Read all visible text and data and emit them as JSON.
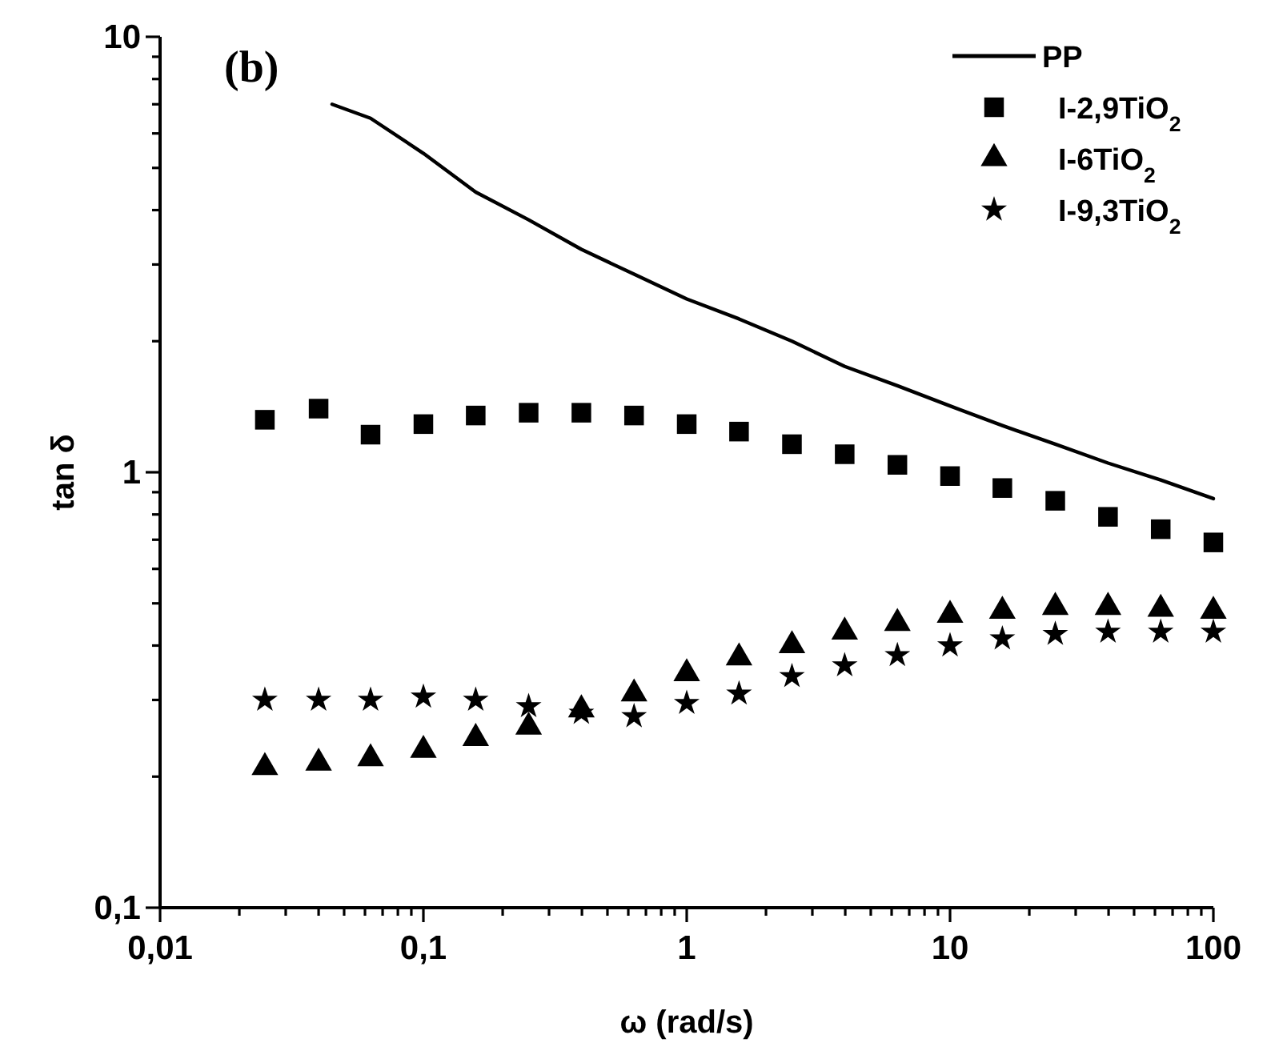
{
  "chart_data": {
    "type": "scatter",
    "title": "(b)",
    "xlabel": "ω (rad/s)",
    "ylabel": "tan δ",
    "log": "xy",
    "legend": "top right",
    "grid": false,
    "xlim": [
      0.01,
      100
    ],
    "ylim": [
      0.1,
      10
    ],
    "xticks": [
      {
        "value": 0.01,
        "label": "0,01"
      },
      {
        "value": 0.02,
        "label": null
      },
      {
        "value": 0.03,
        "label": null
      },
      {
        "value": 0.04,
        "label": null
      },
      {
        "value": 0.05,
        "label": null
      },
      {
        "value": 0.06,
        "label": null
      },
      {
        "value": 0.07,
        "label": null
      },
      {
        "value": 0.08,
        "label": null
      },
      {
        "value": 0.09,
        "label": null
      },
      {
        "value": 0.1,
        "label": "0,1"
      },
      {
        "value": 0.2,
        "label": null
      },
      {
        "value": 0.3,
        "label": null
      },
      {
        "value": 0.4,
        "label": null
      },
      {
        "value": 0.5,
        "label": null
      },
      {
        "value": 0.6,
        "label": null
      },
      {
        "value": 0.7,
        "label": null
      },
      {
        "value": 0.8,
        "label": null
      },
      {
        "value": 0.9,
        "label": null
      },
      1,
      {
        "value": 2,
        "label": null
      },
      {
        "value": 3,
        "label": null
      },
      {
        "value": 4,
        "label": null
      },
      {
        "value": 5,
        "label": null
      },
      {
        "value": 6,
        "label": null
      },
      {
        "value": 7,
        "label": null
      },
      {
        "value": 8,
        "label": null
      },
      {
        "value": 9,
        "label": null
      },
      10,
      {
        "value": 20,
        "label": null
      },
      {
        "value": 30,
        "label": null
      },
      {
        "value": 40,
        "label": null
      },
      {
        "value": 50,
        "label": null
      },
      {
        "value": 60,
        "label": null
      },
      {
        "value": 70,
        "label": null
      },
      {
        "value": 80,
        "label": null
      },
      {
        "value": 90,
        "label": null
      },
      100
    ],
    "yticks": [
      {
        "value": 0.1,
        "label": "0,1"
      },
      {
        "value": 0.2,
        "label": null
      },
      {
        "value": 0.3,
        "label": null
      },
      {
        "value": 0.4,
        "label": null
      },
      {
        "value": 0.5,
        "label": null
      },
      {
        "value": 0.6,
        "label": null
      },
      {
        "value": 0.7,
        "label": null
      },
      {
        "value": 0.8,
        "label": null
      },
      {
        "value": 0.9,
        "label": null
      },
      1,
      {
        "value": 2,
        "label": null
      },
      {
        "value": 3,
        "label": null
      },
      {
        "value": 4,
        "label": null
      },
      {
        "value": 5,
        "label": null
      },
      {
        "value": 6,
        "label": null
      },
      {
        "value": 7,
        "label": null
      },
      {
        "value": 8,
        "label": null
      },
      {
        "value": 9,
        "label": null
      },
      10
    ],
    "x": [
      0.025,
      0.04,
      0.063,
      0.1,
      0.158,
      0.251,
      0.398,
      0.631,
      1,
      1.58,
      2.51,
      3.98,
      6.31,
      10,
      15.8,
      25.1,
      39.8,
      63.1,
      100
    ],
    "series": [
      {
        "name": "PP",
        "type": "line",
        "color": "#000000",
        "line_style": "solid",
        "marker": "none",
        "x": [
          0.045,
          0.063,
          0.1,
          0.158,
          0.251,
          0.398,
          0.631,
          1,
          1.58,
          2.51,
          3.98,
          6.31,
          10,
          15.8,
          25.1,
          39.8,
          63.1,
          100
        ],
        "values": [
          7.0,
          6.5,
          5.4,
          4.4,
          3.8,
          3.25,
          2.85,
          2.5,
          2.25,
          2.0,
          1.75,
          1.58,
          1.42,
          1.28,
          1.16,
          1.05,
          0.96,
          0.87
        ]
      },
      {
        "name": "I-2,9TiO$_{2}$",
        "color": "#000000",
        "marker": "square",
        "values": [
          1.32,
          1.4,
          1.22,
          1.29,
          1.35,
          1.37,
          1.37,
          1.35,
          1.29,
          1.24,
          1.16,
          1.1,
          1.04,
          0.98,
          0.92,
          0.86,
          0.79,
          0.74,
          0.69
        ]
      },
      {
        "name": "I-6TiO$_{2}$",
        "color": "#000000",
        "marker": "triangle",
        "values": [
          0.21,
          0.215,
          0.22,
          0.23,
          0.245,
          0.26,
          0.285,
          0.31,
          0.345,
          0.375,
          0.4,
          0.43,
          0.45,
          0.47,
          0.48,
          0.49,
          0.49,
          0.485,
          0.48
        ]
      },
      {
        "name": "I-9,3TiO$_{2}$",
        "color": "#000000",
        "marker": "star",
        "values": [
          0.3,
          0.3,
          0.3,
          0.305,
          0.3,
          0.29,
          0.28,
          0.275,
          0.295,
          0.31,
          0.34,
          0.36,
          0.38,
          0.4,
          0.415,
          0.425,
          0.43,
          0.43,
          0.43
        ]
      }
    ]
  }
}
